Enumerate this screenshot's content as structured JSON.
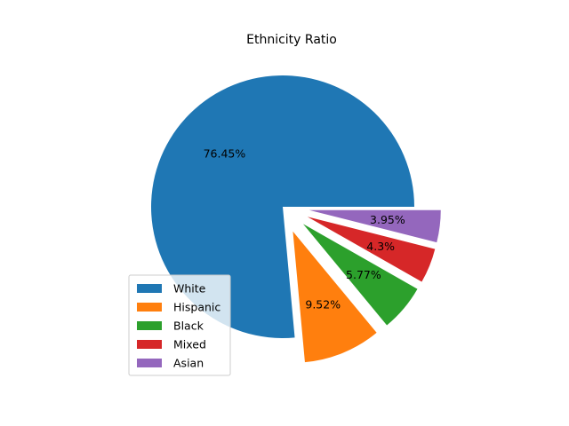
{
  "chart_data": {
    "type": "pie",
    "title": "Ethnicity Ratio",
    "labels": [
      "White",
      "Hispanic",
      "Black",
      "Mixed",
      "Asian"
    ],
    "values": [
      76.45,
      9.52,
      5.77,
      4.3,
      3.95
    ],
    "value_labels": [
      "76.45%",
      "9.52%",
      "5.77%",
      "4.3%",
      "3.95%"
    ],
    "colors": [
      "#1f77b4",
      "#ff7f0e",
      "#2ca02c",
      "#d62728",
      "#9467bd"
    ],
    "exploded": [
      false,
      true,
      true,
      true,
      true
    ],
    "legend_position": "lower-left"
  }
}
